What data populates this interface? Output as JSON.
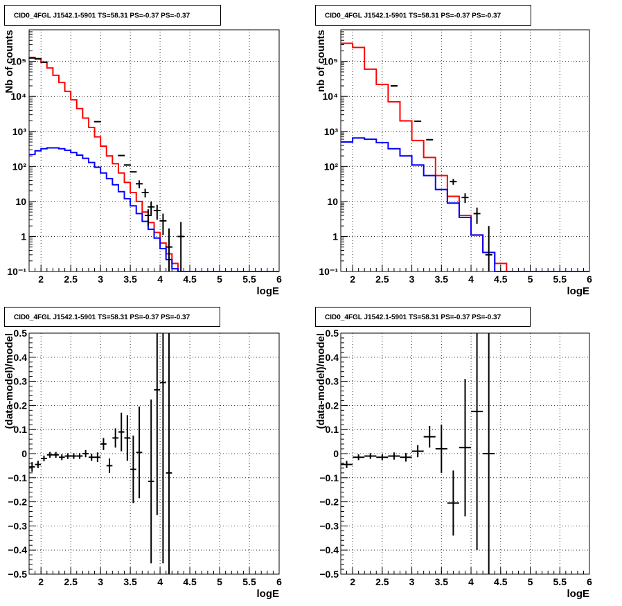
{
  "chart_data": [
    {
      "type": "histogram",
      "title": "CID0_4FGL J1542.1-5901 TS=58.31 PS=-0.37 PS=-0.37",
      "xlabel": "logE",
      "ylabel": "Nb of counts",
      "xlim": [
        1.8,
        6.0
      ],
      "ylim": [
        0.1,
        800000
      ],
      "yscale": "log",
      "grid": true,
      "x_ticks": [
        "2",
        "2.5",
        "3",
        "3.5",
        "4",
        "4.5",
        "5",
        "5.5",
        "6"
      ],
      "y_ticks": [
        "10⁻¹",
        "1",
        "10",
        "10²",
        "10³",
        "10⁴",
        "10⁵"
      ],
      "series": [
        {
          "color": "#ff0000",
          "bin_edges": [
            1.8,
            1.9,
            2.0,
            2.1,
            2.2,
            2.3,
            2.4,
            2.5,
            2.6,
            2.7,
            2.8,
            2.9,
            3.0,
            3.1,
            3.2,
            3.3,
            3.4,
            3.5,
            3.6,
            3.7,
            3.8,
            3.9,
            4.0,
            4.1,
            4.2,
            4.3,
            4.4,
            4.5,
            4.6,
            4.7,
            4.8,
            4.9,
            5.0,
            5.1,
            5.2,
            5.3,
            5.4,
            5.5,
            5.6,
            5.7,
            5.8,
            5.9,
            6.0
          ],
          "values": [
            130000,
            120000,
            95000,
            65000,
            40000,
            25000,
            14000,
            8000,
            4500,
            2400,
            1300,
            700,
            380,
            200,
            120,
            65,
            35,
            18,
            10,
            5,
            2.5,
            1.3,
            0.65,
            0.32,
            0.17,
            0.1,
            0.1,
            0.1,
            0.1,
            0.1,
            0.1,
            0.1,
            0.1,
            0.1,
            0.1,
            0.1,
            0.1,
            0.1,
            0.1,
            0.1,
            0.1,
            0.1
          ]
        },
        {
          "color": "#0000ff",
          "bin_edges": [
            1.8,
            1.9,
            2.0,
            2.1,
            2.2,
            2.3,
            2.4,
            2.5,
            2.6,
            2.7,
            2.8,
            2.9,
            3.0,
            3.1,
            3.2,
            3.3,
            3.4,
            3.5,
            3.6,
            3.7,
            3.8,
            3.9,
            4.0,
            4.1,
            4.2,
            4.3,
            4.4,
            4.5,
            4.6,
            4.7,
            4.8,
            4.9,
            5.0,
            5.1,
            5.2,
            5.3,
            5.4,
            5.5,
            5.6,
            5.7,
            5.8,
            5.9,
            6.0
          ],
          "values": [
            220,
            280,
            320,
            340,
            340,
            320,
            290,
            250,
            210,
            170,
            130,
            95,
            65,
            45,
            30,
            19,
            12,
            7.5,
            4.5,
            2.7,
            1.6,
            0.9,
            0.45,
            0.22,
            0.12,
            0.1,
            0.1,
            0.1,
            0.1,
            0.1,
            0.1,
            0.1,
            0.1,
            0.1,
            0.1,
            0.1,
            0.1,
            0.1,
            0.1,
            0.1,
            0.1,
            0.1
          ]
        }
      ],
      "data_points": [
        {
          "x": 1.85,
          "y": 125000,
          "yerr": [
            0,
            0
          ]
        },
        {
          "x": 1.95,
          "y": 118000,
          "yerr": [
            0,
            0
          ]
        },
        {
          "x": 2.05,
          "y": 95000,
          "yerr": [
            0,
            0
          ]
        },
        {
          "x": 2.95,
          "y": 1900,
          "yerr": [
            0,
            0
          ]
        },
        {
          "x": 3.35,
          "y": 205,
          "yerr": [
            0,
            0
          ]
        },
        {
          "x": 3.45,
          "y": 110,
          "yerr": [
            0,
            0
          ]
        },
        {
          "x": 3.55,
          "y": 70,
          "yerr": [
            0,
            0
          ]
        },
        {
          "x": 3.65,
          "y": 32,
          "yerr": [
            8,
            8
          ]
        },
        {
          "x": 3.75,
          "y": 18,
          "yerr": [
            5,
            5
          ]
        },
        {
          "x": 3.85,
          "y": 7,
          "yerr": [
            3,
            3
          ]
        },
        {
          "x": 3.95,
          "y": 5.5,
          "yerr": [
            2.5,
            2.5
          ]
        },
        {
          "x": 3.8,
          "y": 4,
          "yerr": [
            2,
            2
          ]
        },
        {
          "x": 4.05,
          "y": 2.8,
          "yerr": [
            1.7,
            1.7
          ]
        },
        {
          "x": 4.15,
          "y": 0.5,
          "yerr": [
            0.4,
            1.2
          ]
        },
        {
          "x": 4.35,
          "y": 1,
          "yerr": [
            1,
            1.6
          ]
        }
      ]
    },
    {
      "type": "histogram",
      "title": "CID0_4FGL J1542.1-5901 TS=58.31 PS=-0.37 PS=-0.37",
      "xlabel": "logE",
      "ylabel": "nb of counts",
      "xlim": [
        1.8,
        6.0
      ],
      "ylim": [
        0.1,
        800000
      ],
      "yscale": "log",
      "grid": true,
      "x_ticks": [
        "2",
        "2.5",
        "3",
        "3.5",
        "4",
        "4.5",
        "5",
        "5.5",
        "6"
      ],
      "y_ticks": [
        "10⁻¹",
        "1",
        "10",
        "10²",
        "10³",
        "10⁴",
        "10⁵"
      ],
      "series": [
        {
          "color": "#ff0000",
          "bin_edges": [
            1.8,
            2.0,
            2.2,
            2.4,
            2.6,
            2.8,
            3.0,
            3.2,
            3.4,
            3.6,
            3.8,
            4.0,
            4.2,
            4.4,
            4.6,
            4.8,
            5.0,
            5.2,
            5.4,
            5.6,
            5.8,
            6.0
          ],
          "values": [
            330000,
            250000,
            60000,
            22000,
            7000,
            2000,
            550,
            180,
            55,
            14,
            4,
            1.1,
            0.35,
            0.17,
            0.1,
            0.1,
            0.1,
            0.1,
            0.1,
            0.1,
            0.1
          ]
        },
        {
          "color": "#0000ff",
          "bin_edges": [
            1.8,
            2.0,
            2.2,
            2.4,
            2.6,
            2.8,
            3.0,
            3.2,
            3.4,
            3.6,
            3.8,
            4.0,
            4.2,
            4.4,
            4.6,
            4.8,
            5.0,
            5.2,
            5.4,
            5.6,
            5.8,
            6.0
          ],
          "values": [
            500,
            650,
            600,
            480,
            320,
            200,
            110,
            55,
            22,
            9,
            3.5,
            1.1,
            0.35,
            0.1,
            0.1,
            0.1,
            0.1,
            0.1,
            0.1,
            0.1,
            0.1
          ]
        }
      ],
      "data_points": [
        {
          "x": 2.7,
          "y": 20000,
          "yerr": [
            0,
            0
          ]
        },
        {
          "x": 3.1,
          "y": 1950,
          "yerr": [
            0,
            0
          ]
        },
        {
          "x": 3.3,
          "y": 580,
          "yerr": [
            0,
            0
          ]
        },
        {
          "x": 3.7,
          "y": 37,
          "yerr": [
            7,
            7
          ]
        },
        {
          "x": 3.9,
          "y": 13,
          "yerr": [
            4,
            4
          ]
        },
        {
          "x": 4.1,
          "y": 4.5,
          "yerr": [
            2.2,
            2.2
          ]
        },
        {
          "x": 4.3,
          "y": 0.3,
          "yerr": [
            0.3,
            1.7
          ]
        }
      ]
    },
    {
      "type": "scatter",
      "title": "CID0_4FGL J1542.1-5901 TS=58.31 PS=-0.37 PS=-0.37",
      "xlabel": "logE",
      "ylabel": "(data-model)/model",
      "xlim": [
        1.8,
        6.0
      ],
      "ylim": [
        -0.5,
        0.5
      ],
      "grid": true,
      "x_ticks": [
        "2",
        "2.5",
        "3",
        "3.5",
        "4",
        "4.5",
        "5",
        "5.5",
        "6"
      ],
      "y_ticks": [
        "−0.5",
        "−0.4",
        "−0.3",
        "−0.2",
        "−0.1",
        "0",
        "0.1",
        "0.2",
        "0.3",
        "0.4",
        "0.5"
      ],
      "points": [
        {
          "x": 1.85,
          "y": -0.055,
          "xerr": 0.05,
          "yerr": 0.02
        },
        {
          "x": 1.95,
          "y": -0.045,
          "xerr": 0.05,
          "yerr": 0.015
        },
        {
          "x": 2.05,
          "y": -0.02,
          "xerr": 0.05,
          "yerr": 0.012
        },
        {
          "x": 2.15,
          "y": -0.005,
          "xerr": 0.05,
          "yerr": 0.012
        },
        {
          "x": 2.25,
          "y": -0.005,
          "xerr": 0.05,
          "yerr": 0.012
        },
        {
          "x": 2.35,
          "y": -0.015,
          "xerr": 0.05,
          "yerr": 0.012
        },
        {
          "x": 2.45,
          "y": -0.01,
          "xerr": 0.05,
          "yerr": 0.012
        },
        {
          "x": 2.55,
          "y": -0.01,
          "xerr": 0.05,
          "yerr": 0.012
        },
        {
          "x": 2.65,
          "y": -0.01,
          "xerr": 0.05,
          "yerr": 0.012
        },
        {
          "x": 2.75,
          "y": 0.0,
          "xerr": 0.05,
          "yerr": 0.015
        },
        {
          "x": 2.85,
          "y": -0.015,
          "xerr": 0.05,
          "yerr": 0.015
        },
        {
          "x": 2.95,
          "y": -0.015,
          "xerr": 0.05,
          "yerr": 0.02
        },
        {
          "x": 3.05,
          "y": 0.04,
          "xerr": 0.05,
          "yerr": 0.025
        },
        {
          "x": 3.15,
          "y": -0.05,
          "xerr": 0.05,
          "yerr": 0.03
        },
        {
          "x": 3.25,
          "y": 0.065,
          "xerr": 0.05,
          "yerr": 0.04
        },
        {
          "x": 3.35,
          "y": 0.09,
          "xerr": 0.05,
          "yerr": 0.08
        },
        {
          "x": 3.45,
          "y": 0.065,
          "xerr": 0.05,
          "yerr": 0.095
        },
        {
          "x": 3.55,
          "y": -0.065,
          "xerr": 0.05,
          "yerr": 0.14
        },
        {
          "x": 3.65,
          "y": 0.005,
          "xerr": 0.05,
          "yerr": 0.19
        },
        {
          "x": 3.85,
          "y": -0.115,
          "xerr": 0.05,
          "yerr": 0.34
        },
        {
          "x": 3.95,
          "y": 0.265,
          "xerr": 0.05,
          "yerr": 0.52
        },
        {
          "x": 4.05,
          "y": 0.295,
          "xerr": 0.05,
          "yerr": 0.75
        },
        {
          "x": 4.15,
          "y": -0.08,
          "xerr": 0.05,
          "yerr": 0.9
        }
      ]
    },
    {
      "type": "scatter",
      "title": "CID0_4FGL J1542.1-5901 TS=58.31 PS=-0.37 PS=-0.37",
      "xlabel": "logE",
      "ylabel": "(data-model)/model",
      "xlim": [
        1.8,
        6.0
      ],
      "ylim": [
        -0.5,
        0.5
      ],
      "grid": true,
      "x_ticks": [
        "2",
        "2.5",
        "3",
        "3.5",
        "4",
        "4.5",
        "5",
        "5.5",
        "6"
      ],
      "y_ticks": [
        "−0.5",
        "−0.4",
        "−0.3",
        "−0.2",
        "−0.1",
        "0",
        "0.1",
        "0.2",
        "0.3",
        "0.4",
        "0.5"
      ],
      "points": [
        {
          "x": 1.9,
          "y": -0.045,
          "xerr": 0.1,
          "yerr": 0.015
        },
        {
          "x": 2.1,
          "y": -0.015,
          "xerr": 0.1,
          "yerr": 0.012
        },
        {
          "x": 2.3,
          "y": -0.01,
          "xerr": 0.1,
          "yerr": 0.012
        },
        {
          "x": 2.5,
          "y": -0.015,
          "xerr": 0.1,
          "yerr": 0.012
        },
        {
          "x": 2.7,
          "y": -0.01,
          "xerr": 0.1,
          "yerr": 0.015
        },
        {
          "x": 2.9,
          "y": -0.015,
          "xerr": 0.1,
          "yerr": 0.018
        },
        {
          "x": 3.1,
          "y": 0.01,
          "xerr": 0.1,
          "yerr": 0.025
        },
        {
          "x": 3.3,
          "y": 0.07,
          "xerr": 0.1,
          "yerr": 0.045
        },
        {
          "x": 3.5,
          "y": 0.02,
          "xerr": 0.1,
          "yerr": 0.1
        },
        {
          "x": 3.7,
          "y": -0.205,
          "xerr": 0.1,
          "yerr": 0.135
        },
        {
          "x": 3.9,
          "y": 0.025,
          "xerr": 0.1,
          "yerr": 0.285
        },
        {
          "x": 4.1,
          "y": 0.175,
          "xerr": 0.1,
          "yerr": 0.575
        },
        {
          "x": 4.3,
          "y": 0.0,
          "xerr": 0.1,
          "yerr": 0.85
        }
      ]
    }
  ]
}
